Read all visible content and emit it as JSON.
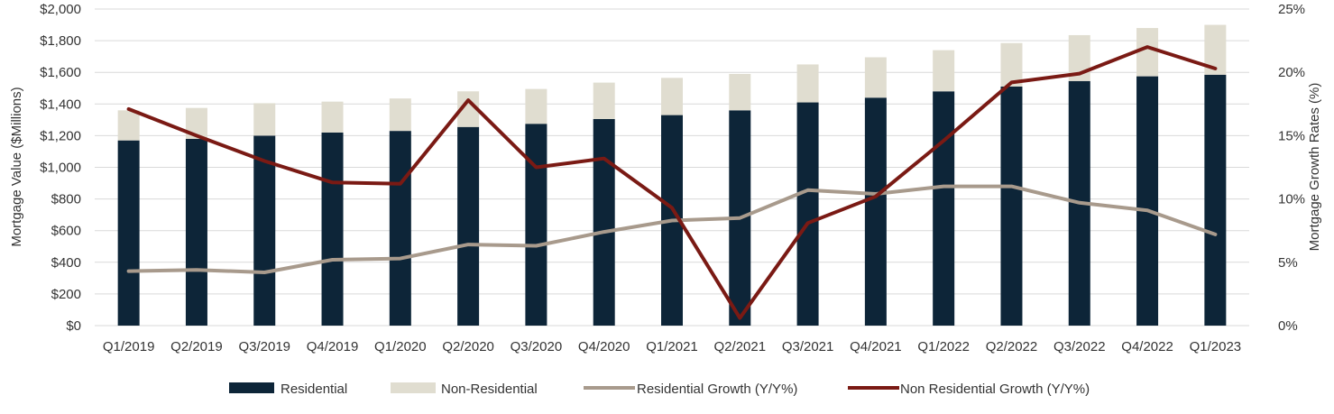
{
  "chart_data": {
    "type": "bar",
    "stacked": true,
    "categories": [
      "Q1/2019",
      "Q2/2019",
      "Q3/2019",
      "Q4/2019",
      "Q1/2020",
      "Q2/2020",
      "Q3/2020",
      "Q4/2020",
      "Q1/2021",
      "Q2/2021",
      "Q3/2021",
      "Q4/2021",
      "Q1/2022",
      "Q2/2022",
      "Q3/2022",
      "Q4/2022",
      "Q1/2023"
    ],
    "series": [
      {
        "name": "Residential",
        "kind": "bar",
        "axis": "left",
        "color": "#0d2538",
        "values": [
          1170,
          1180,
          1200,
          1220,
          1230,
          1255,
          1275,
          1305,
          1330,
          1360,
          1410,
          1440,
          1480,
          1510,
          1545,
          1575,
          1585
        ]
      },
      {
        "name": "Non-Residential",
        "kind": "bar",
        "axis": "left",
        "color": "#e0ddd0",
        "values": [
          190,
          195,
          205,
          195,
          205,
          225,
          220,
          230,
          235,
          230,
          240,
          255,
          260,
          275,
          290,
          305,
          315
        ]
      },
      {
        "name": "Residential Growth (Y/Y%)",
        "kind": "line",
        "axis": "right",
        "color": "#a89a8c",
        "values": [
          4.3,
          4.4,
          4.2,
          5.2,
          5.3,
          6.4,
          6.3,
          7.4,
          8.3,
          8.5,
          10.7,
          10.4,
          11.0,
          11.0,
          9.7,
          9.1,
          7.2
        ]
      },
      {
        "name": "Non Residential Growth (Y/Y%)",
        "kind": "line",
        "axis": "right",
        "color": "#7a1a14",
        "values": [
          17.1,
          15.0,
          13.0,
          11.3,
          11.2,
          17.8,
          12.5,
          13.2,
          9.3,
          0.6,
          8.1,
          10.2,
          14.6,
          19.2,
          19.9,
          22.0,
          20.3
        ]
      }
    ],
    "y_left": {
      "label": "Mortgage Value ($Millions)",
      "range": [
        0,
        2000
      ],
      "ticks": [
        0,
        200,
        400,
        600,
        800,
        1000,
        1200,
        1400,
        1600,
        1800,
        2000
      ],
      "tick_labels": [
        "$0",
        "$200",
        "$400",
        "$600",
        "$800",
        "$1,000",
        "$1,200",
        "$1,400",
        "$1,600",
        "$1,800",
        "$2,000"
      ]
    },
    "y_right": {
      "label": "Mortgage Growth Rates (%)",
      "range": [
        0,
        25
      ],
      "ticks": [
        0,
        5,
        10,
        15,
        20,
        25
      ],
      "tick_labels": [
        "0%",
        "5%",
        "10%",
        "15%",
        "20%",
        "25%"
      ]
    },
    "grid": true,
    "legend_position": "bottom"
  }
}
